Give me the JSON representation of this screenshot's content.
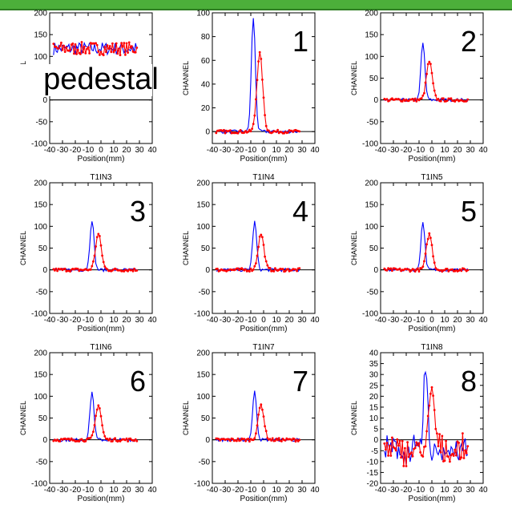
{
  "colors": {
    "series1": "#0000ff",
    "series2": "#ff0000",
    "header_bar": "#4caf3a",
    "header_bar_border": "#2e7d22"
  },
  "chart_data": [
    {
      "type": "line",
      "title": "",
      "label": "pedestal",
      "xlabel": "Position(mm)",
      "ylabel": "CHANNEL",
      "xlim": [
        -40,
        40
      ],
      "ylim": [
        -100,
        200
      ],
      "yticks": [
        -100,
        -50,
        0,
        50,
        100,
        150,
        200
      ],
      "xticks": [
        -40,
        -30,
        -20,
        -10,
        0,
        10,
        20,
        30,
        40
      ],
      "xticklabels": [
        "-40",
        "-30",
        "-20",
        "-10",
        "0",
        "10",
        "20",
        "30",
        "40"
      ],
      "peak_a": null,
      "peak_b": null
    },
    {
      "type": "line",
      "title": "",
      "label": "1",
      "xlabel": "Position(mm)",
      "ylabel": "CHANNEL",
      "xlim": [
        -40,
        40
      ],
      "ylim": [
        -10,
        100
      ],
      "yticks": [
        0,
        20,
        40,
        60,
        80,
        100
      ],
      "xticks": [
        -40,
        -30,
        -20,
        -10,
        0,
        10,
        20,
        30,
        40
      ],
      "xticklabels": [
        "-40",
        "-30",
        "-20",
        "-10",
        "0",
        "10",
        "20",
        "30",
        "40"
      ],
      "peak_a": [
        -8,
        96
      ],
      "peak_b": [
        -3,
        66
      ]
    },
    {
      "type": "line",
      "title": "",
      "label": "2",
      "xlabel": "Position(mm)",
      "ylabel": "CHANNEL",
      "xlim": [
        -40,
        40
      ],
      "ylim": [
        -100,
        200
      ],
      "yticks": [
        -100,
        -50,
        0,
        50,
        100,
        150,
        200
      ],
      "xticks": [
        -40,
        -30,
        -20,
        -10,
        0,
        10,
        20,
        30,
        40
      ],
      "xticklabels": [
        "-40",
        "-30",
        "-20",
        "-10",
        "0",
        "10",
        "20",
        "30",
        "40"
      ],
      "peak_a": [
        -7,
        130
      ],
      "peak_b": [
        -2,
        88
      ]
    },
    {
      "type": "line",
      "title": "T1IN3",
      "label": "3",
      "xlabel": "Position(mm)",
      "ylabel": "CHANNEL",
      "xlim": [
        -40,
        40
      ],
      "ylim": [
        -100,
        200
      ],
      "yticks": [
        -100,
        -50,
        0,
        50,
        100,
        150,
        200
      ],
      "xticks": [
        -40,
        -30,
        -20,
        -10,
        0,
        10,
        20,
        30,
        40
      ],
      "xticklabels": [
        "-40",
        "-30",
        "-20",
        "-10",
        "0",
        "10",
        "20",
        "30",
        "40"
      ],
      "peak_a": [
        -7,
        115
      ],
      "peak_b": [
        -2,
        82
      ]
    },
    {
      "type": "line",
      "title": "T1IN4",
      "label": "4",
      "xlabel": "Position(mm)",
      "ylabel": "CHANNEL",
      "xlim": [
        -40,
        40
      ],
      "ylim": [
        -100,
        200
      ],
      "yticks": [
        -100,
        -50,
        0,
        50,
        100,
        150,
        200
      ],
      "xticks": [
        -40,
        -30,
        -20,
        -10,
        0,
        10,
        20,
        30,
        40
      ],
      "xticklabels": [
        "-40",
        "-30",
        "-20",
        "-10",
        "0",
        "10",
        "20",
        "30",
        "40"
      ],
      "peak_a": [
        -7,
        110
      ],
      "peak_b": [
        -2,
        82
      ]
    },
    {
      "type": "line",
      "title": "T1IN5",
      "label": "5",
      "xlabel": "Position(mm)",
      "ylabel": "CHANNEL",
      "xlim": [
        -40,
        40
      ],
      "ylim": [
        -100,
        200
      ],
      "yticks": [
        -100,
        -50,
        0,
        50,
        100,
        150,
        200
      ],
      "xticks": [
        -40,
        -30,
        -20,
        -10,
        0,
        10,
        20,
        30,
        40
      ],
      "xticklabels": [
        "-40",
        "-30",
        "-20",
        "-10",
        "0",
        "10",
        "20",
        "30",
        "40"
      ],
      "peak_a": [
        -7,
        110
      ],
      "peak_b": [
        -2,
        82
      ]
    },
    {
      "type": "line",
      "title": "T1IN6",
      "label": "6",
      "xlabel": "Position(mm)",
      "ylabel": "CHANNEL",
      "xlim": [
        -40,
        40
      ],
      "ylim": [
        -100,
        200
      ],
      "yticks": [
        -100,
        -50,
        0,
        50,
        100,
        150,
        200
      ],
      "xticks": [
        -40,
        -30,
        -20,
        -10,
        0,
        10,
        20,
        30,
        40
      ],
      "xticklabels": [
        "-40",
        "-30",
        "-20",
        "-10",
        "0",
        "10",
        "20",
        "30",
        "40"
      ],
      "peak_a": [
        -7,
        110
      ],
      "peak_b": [
        -2,
        80
      ]
    },
    {
      "type": "line",
      "title": "T1IN7",
      "label": "7",
      "xlabel": "Position(mm)",
      "ylabel": "CHANNEL",
      "xlim": [
        -40,
        40
      ],
      "ylim": [
        -100,
        200
      ],
      "yticks": [
        -100,
        -50,
        0,
        50,
        100,
        150,
        200
      ],
      "xticks": [
        -40,
        -30,
        -20,
        -10,
        0,
        10,
        20,
        30,
        40
      ],
      "xticklabels": [
        "-40",
        "-30",
        "-20",
        "-10",
        "0",
        "10",
        "20",
        "30",
        "40"
      ],
      "peak_a": [
        -7,
        110
      ],
      "peak_b": [
        -2,
        80
      ]
    },
    {
      "type": "line",
      "title": "T1IN8",
      "label": "8",
      "xlabel": "Position(mm)",
      "ylabel": "CHANNEL",
      "xlim": [
        -40,
        40
      ],
      "ylim": [
        -20,
        40
      ],
      "yticks": [
        -20,
        -15,
        -10,
        -5,
        0,
        5,
        10,
        15,
        20,
        25,
        30,
        35,
        40
      ],
      "xticks": [
        -40,
        -30,
        -20,
        -10,
        0,
        10,
        20,
        30,
        40
      ],
      "xticklabels": [
        "-40",
        "-30",
        "-20",
        "-10",
        "0",
        "10",
        "20",
        "30",
        "40"
      ],
      "peak_a": [
        -5,
        37
      ],
      "peak_b": [
        0,
        27
      ]
    }
  ]
}
